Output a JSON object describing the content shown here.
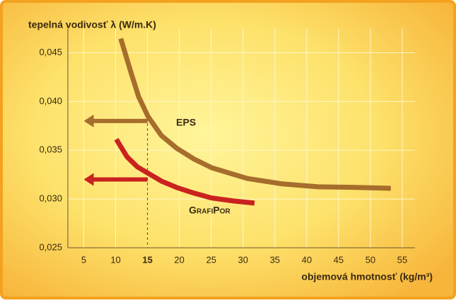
{
  "chart_data": {
    "type": "line",
    "y_label": "tepelná vodivosť λ (W/m.K)",
    "x_label": "objemová hmotnosť (kg/m³)",
    "xlim": [
      2.5,
      57
    ],
    "ylim": [
      0.025,
      0.0475
    ],
    "xticks": [
      5,
      10,
      15,
      20,
      25,
      30,
      35,
      40,
      45,
      50,
      55
    ],
    "yticks": [
      {
        "value": 0.025,
        "label": "0,025"
      },
      {
        "value": 0.03,
        "label": "0,030"
      },
      {
        "value": 0.035,
        "label": "0,035"
      },
      {
        "value": 0.04,
        "label": "0,040"
      },
      {
        "value": 0.045,
        "label": "0,045"
      }
    ],
    "grid": true,
    "reference_x": 15,
    "series": [
      {
        "name": "EPS",
        "color": "#a66d2c",
        "x": [
          10.8,
          12.3,
          13.6,
          15.1,
          17.2,
          19.6,
          22.3,
          25.1,
          30.7,
          36.2,
          41.8,
          47.3,
          53.2
        ],
        "values": [
          0.04645,
          0.0432,
          0.0405,
          0.03845,
          0.0365,
          0.0352,
          0.0341,
          0.0332,
          0.0321,
          0.03155,
          0.03125,
          0.0312,
          0.0311
        ]
      },
      {
        "name": "GrafiPor",
        "color": "#c9221f",
        "x": [
          10.1,
          11.8,
          13.4,
          15.1,
          17.3,
          19.6,
          22.3,
          25.1,
          28.5,
          31.8
        ],
        "values": [
          0.03613,
          0.03431,
          0.0333,
          0.03264,
          0.0318,
          0.03118,
          0.0306,
          0.0301,
          0.0298,
          0.02958
        ]
      }
    ],
    "arrows": [
      {
        "y": 0.038,
        "from_x": 15,
        "to_x": 5,
        "color": "#a66d2c"
      },
      {
        "y": 0.032,
        "from_x": 15,
        "to_x": 5,
        "color": "#c9221f"
      }
    ]
  }
}
